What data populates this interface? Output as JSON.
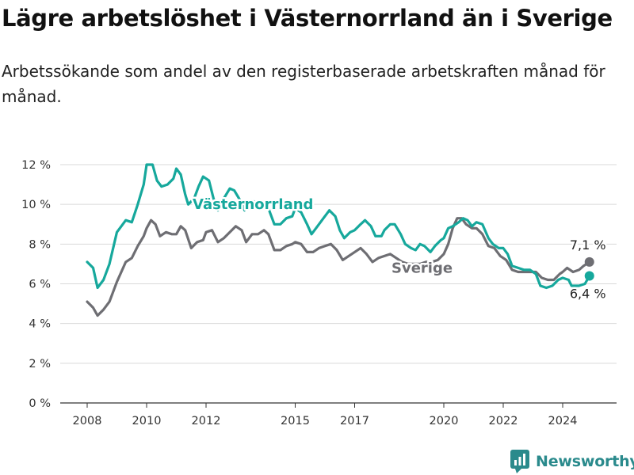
{
  "title": "Lägre arbetslöshet i Västernorrland än i Sverige",
  "subtitle": "Arbetssökande som andel av den registerbaserade arbetskraften månad för månad.",
  "brand": {
    "name": "Newsworthy",
    "icon": "newsworthy-logo-icon",
    "color": "#2a8a8c"
  },
  "chart_data": {
    "type": "line",
    "x_unit": "year",
    "ylim": [
      0,
      12
    ],
    "xlim": [
      2007.4,
      2026.1
    ],
    "y_ticks": [
      0,
      2,
      4,
      6,
      8,
      10,
      12
    ],
    "y_tick_labels": [
      "0 %",
      "2 %",
      "4 %",
      "6 %",
      "8 %",
      "10 %",
      "12 %"
    ],
    "x_ticks": [
      2008,
      2010,
      2012,
      2015,
      2017,
      2020,
      2022,
      2024
    ],
    "x_tick_labels": [
      "2008",
      "2010",
      "2012",
      "2015",
      "2017",
      "2020",
      "2022",
      "2024"
    ],
    "grid": "horizontal",
    "legend": "inline labels",
    "series": [
      {
        "name": "Västernorrland",
        "color": "#16a89c",
        "end_label": "6,4 %",
        "points": [
          [
            2008.0,
            7.1
          ],
          [
            2008.2,
            6.8
          ],
          [
            2008.35,
            5.8
          ],
          [
            2008.55,
            6.2
          ],
          [
            2008.75,
            7.0
          ],
          [
            2009.0,
            8.6
          ],
          [
            2009.3,
            9.2
          ],
          [
            2009.5,
            9.1
          ],
          [
            2009.7,
            10.0
          ],
          [
            2009.9,
            11.0
          ],
          [
            2010.0,
            12.0
          ],
          [
            2010.2,
            12.0
          ],
          [
            2010.35,
            11.2
          ],
          [
            2010.5,
            10.9
          ],
          [
            2010.7,
            11.0
          ],
          [
            2010.9,
            11.3
          ],
          [
            2011.0,
            11.8
          ],
          [
            2011.15,
            11.5
          ],
          [
            2011.3,
            10.5
          ],
          [
            2011.4,
            10.0
          ],
          [
            2011.6,
            10.3
          ],
          [
            2011.75,
            10.9
          ],
          [
            2011.9,
            11.4
          ],
          [
            2012.1,
            11.2
          ],
          [
            2012.25,
            10.3
          ],
          [
            2012.4,
            9.7
          ],
          [
            2012.6,
            10.3
          ],
          [
            2012.8,
            10.8
          ],
          [
            2012.95,
            10.7
          ],
          [
            2013.15,
            10.2
          ],
          [
            2013.3,
            9.7
          ],
          [
            2013.5,
            10.2
          ],
          [
            2013.7,
            10.1
          ],
          [
            2013.9,
            9.9
          ],
          [
            2014.1,
            9.8
          ],
          [
            2014.3,
            9.0
          ],
          [
            2014.5,
            9.0
          ],
          [
            2014.7,
            9.3
          ],
          [
            2014.9,
            9.4
          ],
          [
            2015.0,
            9.8
          ],
          [
            2015.2,
            9.6
          ],
          [
            2015.4,
            9.0
          ],
          [
            2015.55,
            8.5
          ],
          [
            2015.75,
            8.9
          ],
          [
            2015.95,
            9.3
          ],
          [
            2016.15,
            9.7
          ],
          [
            2016.35,
            9.4
          ],
          [
            2016.5,
            8.7
          ],
          [
            2016.65,
            8.3
          ],
          [
            2016.85,
            8.6
          ],
          [
            2017.0,
            8.7
          ],
          [
            2017.2,
            9.0
          ],
          [
            2017.35,
            9.2
          ],
          [
            2017.55,
            8.9
          ],
          [
            2017.7,
            8.4
          ],
          [
            2017.9,
            8.4
          ],
          [
            2018.0,
            8.7
          ],
          [
            2018.2,
            9.0
          ],
          [
            2018.35,
            9.0
          ],
          [
            2018.55,
            8.5
          ],
          [
            2018.7,
            8.0
          ],
          [
            2018.9,
            7.8
          ],
          [
            2019.05,
            7.7
          ],
          [
            2019.2,
            8.0
          ],
          [
            2019.35,
            7.9
          ],
          [
            2019.55,
            7.6
          ],
          [
            2019.7,
            7.9
          ],
          [
            2019.9,
            8.2
          ],
          [
            2020.0,
            8.3
          ],
          [
            2020.15,
            8.8
          ],
          [
            2020.3,
            8.9
          ],
          [
            2020.5,
            9.1
          ],
          [
            2020.65,
            9.3
          ],
          [
            2020.8,
            9.2
          ],
          [
            2020.95,
            8.9
          ],
          [
            2021.1,
            9.1
          ],
          [
            2021.3,
            9.0
          ],
          [
            2021.5,
            8.3
          ],
          [
            2021.65,
            8.0
          ],
          [
            2021.85,
            7.8
          ],
          [
            2022.0,
            7.8
          ],
          [
            2022.15,
            7.5
          ],
          [
            2022.3,
            6.9
          ],
          [
            2022.5,
            6.8
          ],
          [
            2022.7,
            6.7
          ],
          [
            2022.9,
            6.7
          ],
          [
            2023.1,
            6.5
          ],
          [
            2023.25,
            5.9
          ],
          [
            2023.45,
            5.8
          ],
          [
            2023.65,
            5.9
          ],
          [
            2023.85,
            6.2
          ],
          [
            2024.0,
            6.3
          ],
          [
            2024.2,
            6.2
          ],
          [
            2024.3,
            5.9
          ],
          [
            2024.55,
            5.9
          ],
          [
            2024.75,
            6.0
          ],
          [
            2024.9,
            6.4
          ]
        ]
      },
      {
        "name": "Sverige",
        "color": "#6e6e73",
        "end_label": "7,1 %",
        "points": [
          [
            2008.0,
            5.1
          ],
          [
            2008.2,
            4.8
          ],
          [
            2008.35,
            4.4
          ],
          [
            2008.55,
            4.7
          ],
          [
            2008.75,
            5.1
          ],
          [
            2009.0,
            6.1
          ],
          [
            2009.3,
            7.1
          ],
          [
            2009.5,
            7.3
          ],
          [
            2009.7,
            7.9
          ],
          [
            2009.9,
            8.4
          ],
          [
            2010.0,
            8.8
          ],
          [
            2010.15,
            9.2
          ],
          [
            2010.3,
            9.0
          ],
          [
            2010.45,
            8.4
          ],
          [
            2010.65,
            8.6
          ],
          [
            2010.85,
            8.5
          ],
          [
            2011.0,
            8.5
          ],
          [
            2011.15,
            8.9
          ],
          [
            2011.3,
            8.7
          ],
          [
            2011.5,
            7.8
          ],
          [
            2011.7,
            8.1
          ],
          [
            2011.9,
            8.2
          ],
          [
            2012.0,
            8.6
          ],
          [
            2012.2,
            8.7
          ],
          [
            2012.4,
            8.1
          ],
          [
            2012.6,
            8.3
          ],
          [
            2012.8,
            8.6
          ],
          [
            2013.0,
            8.9
          ],
          [
            2013.2,
            8.7
          ],
          [
            2013.35,
            8.1
          ],
          [
            2013.55,
            8.5
          ],
          [
            2013.75,
            8.5
          ],
          [
            2013.95,
            8.7
          ],
          [
            2014.1,
            8.5
          ],
          [
            2014.3,
            7.7
          ],
          [
            2014.5,
            7.7
          ],
          [
            2014.7,
            7.9
          ],
          [
            2014.9,
            8.0
          ],
          [
            2015.0,
            8.1
          ],
          [
            2015.2,
            8.0
          ],
          [
            2015.4,
            7.6
          ],
          [
            2015.6,
            7.6
          ],
          [
            2015.8,
            7.8
          ],
          [
            2016.0,
            7.9
          ],
          [
            2016.2,
            8.0
          ],
          [
            2016.4,
            7.7
          ],
          [
            2016.6,
            7.2
          ],
          [
            2016.8,
            7.4
          ],
          [
            2017.0,
            7.6
          ],
          [
            2017.2,
            7.8
          ],
          [
            2017.4,
            7.5
          ],
          [
            2017.6,
            7.1
          ],
          [
            2017.8,
            7.3
          ],
          [
            2018.0,
            7.4
          ],
          [
            2018.2,
            7.5
          ],
          [
            2018.4,
            7.3
          ],
          [
            2018.6,
            7.1
          ],
          [
            2018.8,
            7.0
          ],
          [
            2019.0,
            7.0
          ],
          [
            2019.2,
            7.0
          ],
          [
            2019.4,
            7.1
          ],
          [
            2019.6,
            7.1
          ],
          [
            2019.8,
            7.2
          ],
          [
            2020.0,
            7.5
          ],
          [
            2020.15,
            8.0
          ],
          [
            2020.3,
            8.8
          ],
          [
            2020.45,
            9.3
          ],
          [
            2020.6,
            9.3
          ],
          [
            2020.75,
            9.0
          ],
          [
            2020.95,
            8.8
          ],
          [
            2021.1,
            8.8
          ],
          [
            2021.3,
            8.5
          ],
          [
            2021.5,
            7.9
          ],
          [
            2021.7,
            7.8
          ],
          [
            2021.9,
            7.4
          ],
          [
            2022.1,
            7.2
          ],
          [
            2022.3,
            6.7
          ],
          [
            2022.5,
            6.6
          ],
          [
            2022.7,
            6.6
          ],
          [
            2022.9,
            6.6
          ],
          [
            2023.1,
            6.6
          ],
          [
            2023.3,
            6.3
          ],
          [
            2023.5,
            6.2
          ],
          [
            2023.7,
            6.2
          ],
          [
            2023.9,
            6.5
          ],
          [
            2024.0,
            6.6
          ],
          [
            2024.15,
            6.8
          ],
          [
            2024.35,
            6.6
          ],
          [
            2024.55,
            6.7
          ],
          [
            2024.7,
            6.9
          ],
          [
            2024.9,
            7.1
          ]
        ]
      }
    ]
  }
}
